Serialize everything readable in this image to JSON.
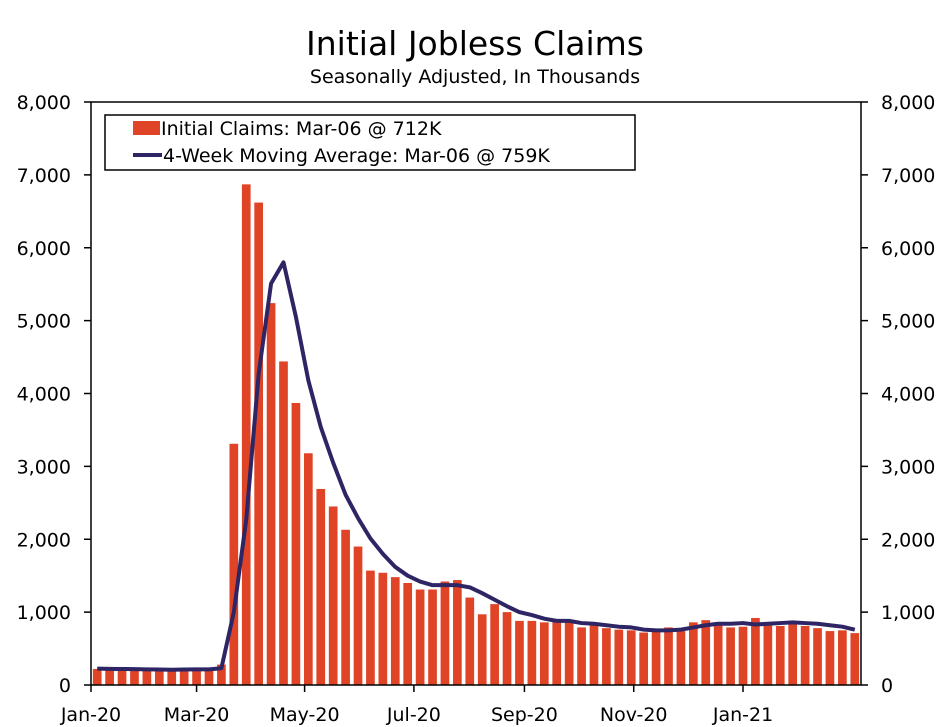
{
  "chart_data": {
    "type": "bar",
    "title": "Initial Jobless Claims",
    "subtitle": "Seasonally Adjusted, In Thousands",
    "xlabel": "",
    "ylabel": "",
    "ylim": [
      0,
      8000
    ],
    "y_ticks": [
      "0",
      "1,000",
      "2,000",
      "3,000",
      "4,000",
      "5,000",
      "6,000",
      "7,000",
      "8,000"
    ],
    "y_tick_values": [
      0,
      1000,
      2000,
      3000,
      4000,
      5000,
      6000,
      7000,
      8000
    ],
    "x_tick_labels": [
      "Jan-20",
      "Mar-20",
      "May-20",
      "Jul-20",
      "Sep-20",
      "Nov-20",
      "Jan-21"
    ],
    "x_tick_weeks": [
      0,
      8.5,
      17.2,
      26,
      34.9,
      43.7,
      52.5
    ],
    "grid": false,
    "legend_position": "top-left",
    "colors": {
      "bars": "#e04427",
      "line": "#2e2565",
      "axis": "#000000"
    },
    "series": [
      {
        "name": "Initial Claims: Mar-06 @ 712K",
        "kind": "bar",
        "values": [
          220,
          220,
          215,
          210,
          205,
          210,
          215,
          215,
          215,
          210,
          280,
          3310,
          6870,
          6620,
          5240,
          4440,
          3870,
          3180,
          2690,
          2450,
          2130,
          1900,
          1570,
          1540,
          1480,
          1400,
          1310,
          1310,
          1420,
          1440,
          1200,
          970,
          1110,
          1000,
          880,
          880,
          860,
          870,
          860,
          790,
          840,
          780,
          760,
          750,
          720,
          750,
          790,
          740,
          860,
          890,
          820,
          790,
          800,
          920,
          860,
          810,
          830,
          810,
          780,
          740,
          750,
          712
        ]
      },
      {
        "name": "4-Week Moving Average: Mar-06 @ 759K",
        "kind": "line",
        "values": [
          225,
          222,
          220,
          218,
          215,
          212,
          210,
          212,
          214,
          215,
          230,
          1000,
          2270,
          4270,
          5510,
          5800,
          5050,
          4180,
          3540,
          3050,
          2610,
          2290,
          2010,
          1800,
          1620,
          1500,
          1420,
          1370,
          1370,
          1370,
          1340,
          1260,
          1170,
          1080,
          1000,
          960,
          910,
          880,
          880,
          850,
          840,
          820,
          800,
          790,
          760,
          750,
          750,
          760,
          790,
          820,
          840,
          840,
          850,
          830,
          840,
          850,
          860,
          850,
          840,
          820,
          800,
          759
        ]
      }
    ]
  }
}
